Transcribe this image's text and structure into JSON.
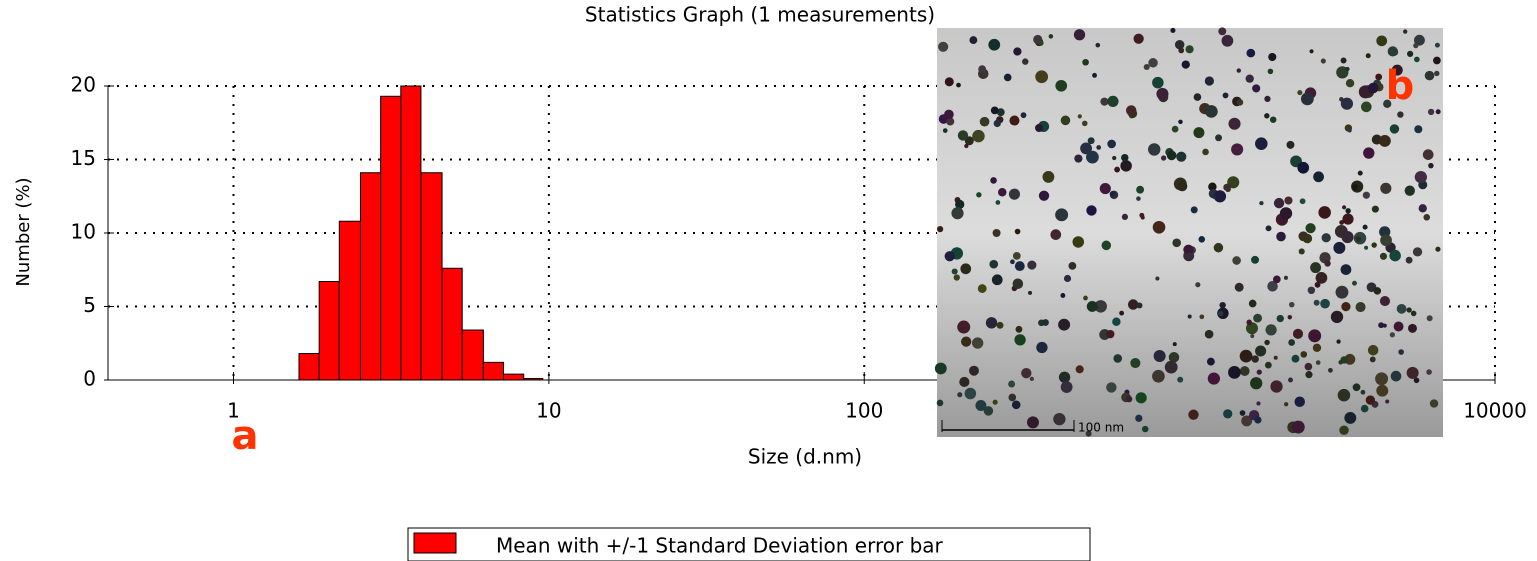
{
  "chart_data": {
    "type": "histogram",
    "title": "Statistics Graph (1 measurements)",
    "xlabel": "Size (d.nm)",
    "ylabel": "Number (%)",
    "bins": [
      1.613,
      1.869,
      2.165,
      2.527,
      2.928,
      3.392,
      3.929,
      4.585,
      5.311,
      6.199,
      7.182,
      8.32,
      9.568
    ],
    "series": [
      {
        "name": "Mean with +/-1 Standard Deviation error bar",
        "color": "#ff0000",
        "values": [
          1.8,
          6.7,
          10.8,
          14.1,
          19.3,
          20.0,
          14.1,
          7.6,
          3.4,
          1.2,
          0.4,
          0.1
        ]
      }
    ],
    "xlim": [
      0.4,
      10000
    ],
    "xscale": "log",
    "xticks": [
      1,
      10,
      100,
      10000
    ],
    "ylim": [
      0,
      20
    ],
    "yticks": [
      0,
      5,
      10,
      15,
      20
    ],
    "grid": true,
    "annotations": {
      "panel_a": "a",
      "panel_b": "b",
      "scale_bar": "100 nm"
    }
  }
}
